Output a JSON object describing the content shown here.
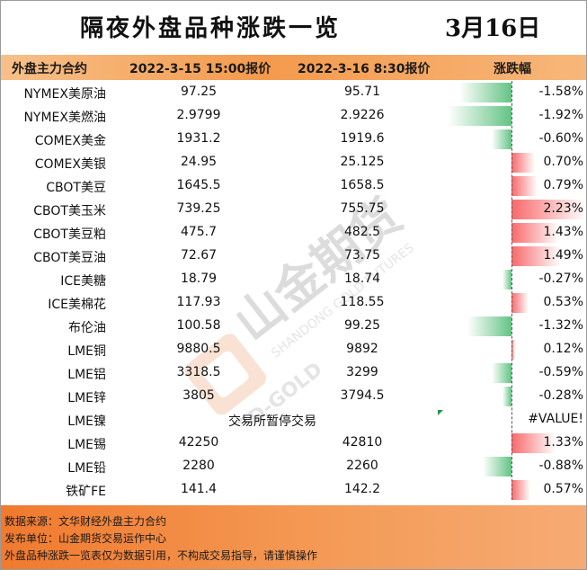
{
  "title": {
    "main": "隔夜外盘品种涨跌一览",
    "date": "3月16日"
  },
  "header": {
    "name": "外盘主力合约",
    "price1": "2022-3-15 15:00报价",
    "price2": "2022-3-16 8:30报价",
    "change": "涨跌幅"
  },
  "rows": [
    {
      "name": "NYMEX美原油",
      "p1": "97.25",
      "p2": "95.71",
      "pct_text": "-1.58%",
      "pct": -1.58
    },
    {
      "name": "NYMEX美燃油",
      "p1": "2.9799",
      "p2": "2.9226",
      "pct_text": "-1.92%",
      "pct": -1.92
    },
    {
      "name": "COMEX美金",
      "p1": "1931.2",
      "p2": "1919.6",
      "pct_text": "-0.60%",
      "pct": -0.6
    },
    {
      "name": "COMEX美银",
      "p1": "24.95",
      "p2": "25.125",
      "pct_text": "0.70%",
      "pct": 0.7
    },
    {
      "name": "CBOT美豆",
      "p1": "1645.5",
      "p2": "1658.5",
      "pct_text": "0.79%",
      "pct": 0.79
    },
    {
      "name": "CBOT美玉米",
      "p1": "739.25",
      "p2": "755.75",
      "pct_text": "2.23%",
      "pct": 2.23
    },
    {
      "name": "CBOT美豆粕",
      "p1": "475.7",
      "p2": "482.5",
      "pct_text": "1.43%",
      "pct": 1.43
    },
    {
      "name": "CBOT美豆油",
      "p1": "72.67",
      "p2": "73.75",
      "pct_text": "1.49%",
      "pct": 1.49
    },
    {
      "name": "ICE美糖",
      "p1": "18.79",
      "p2": "18.74",
      "pct_text": "-0.27%",
      "pct": -0.27
    },
    {
      "name": "ICE美棉花",
      "p1": "117.93",
      "p2": "118.55",
      "pct_text": "0.53%",
      "pct": 0.53
    },
    {
      "name": "布伦油",
      "p1": "100.58",
      "p2": "99.25",
      "pct_text": "-1.32%",
      "pct": -1.32
    },
    {
      "name": "LME铜",
      "p1": "9880.5",
      "p2": "9892",
      "pct_text": "0.12%",
      "pct": 0.12
    },
    {
      "name": "LME铝",
      "p1": "3318.5",
      "p2": "3299",
      "pct_text": "-0.59%",
      "pct": -0.59
    },
    {
      "name": "LME锌",
      "p1": "3805",
      "p2": "3794.5",
      "pct_text": "-0.28%",
      "pct": -0.28
    },
    {
      "name": "LME镍",
      "merged": "交易所暂停交易",
      "pct_text": "#VALUE!",
      "pct": null
    },
    {
      "name": "LME锡",
      "p1": "42250",
      "p2": "42810",
      "pct_text": "1.33%",
      "pct": 1.33
    },
    {
      "name": "LME铅",
      "p1": "2280",
      "p2": "2260",
      "pct_text": "-0.88%",
      "pct": -0.88
    },
    {
      "name": "铁矿FE",
      "p1": "141.4",
      "p2": "142.2",
      "pct_text": "0.57%",
      "pct": 0.57
    }
  ],
  "watermark": {
    "cn": "山金期货",
    "en": "SHANDONG GOLD FUTURES",
    "logo_text": "SD-GOLD"
  },
  "footer": {
    "line1": "数据来源：文华财经外盘主力合约",
    "line2": "发布单位：山金期货交易运作中心",
    "line3": "外盘品种涨跌一览表仅为数据引用，不构成交易指导，请谨慎操作"
  },
  "colors": {
    "header_orange": "#f49a4d",
    "footer_orange": "#f07a2e",
    "bar_green": "#63c384",
    "bar_red": "#f8696b"
  }
}
